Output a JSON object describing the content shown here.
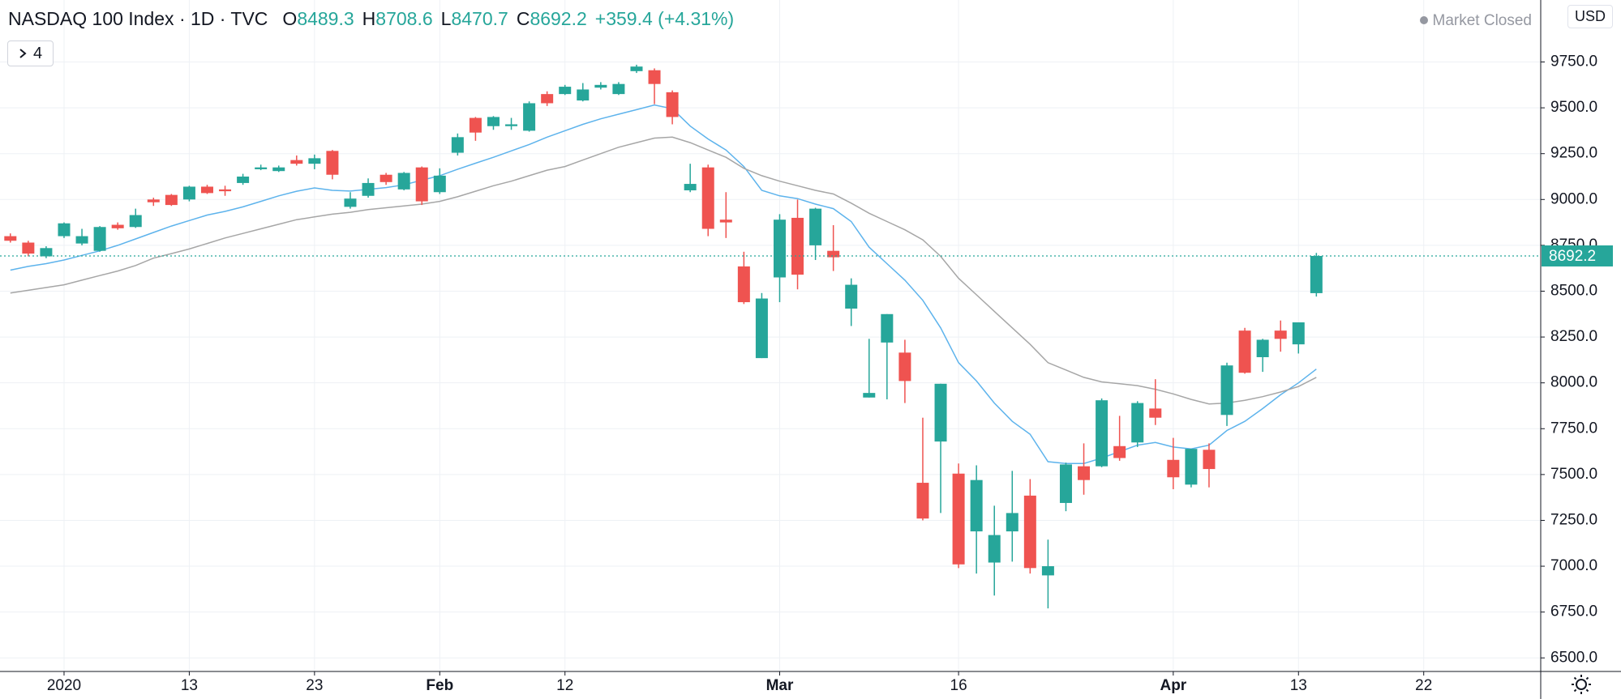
{
  "chart_data": {
    "type": "candlestick",
    "title": "NASDAQ 100 Index · 1D · TVC",
    "ohlc_labels": [
      "O",
      "H",
      "L",
      "C"
    ],
    "change_label": "+359.4 (+4.31%)",
    "market_status": "Market Closed",
    "currency": "USD",
    "indicators_count": 4,
    "up_color": "#26a69a",
    "down_color": "#ef5350",
    "grid": true,
    "x": [
      -3,
      -2,
      -1,
      0,
      1,
      2,
      3,
      4,
      5,
      6,
      7,
      8,
      9,
      10,
      11,
      12,
      13,
      14,
      15,
      16,
      17,
      18,
      19,
      20,
      21,
      22,
      23,
      24,
      25,
      26,
      27,
      28,
      29,
      30,
      31,
      32,
      33,
      34,
      35,
      36,
      37,
      38,
      39,
      40,
      41,
      42,
      43,
      44,
      45,
      46,
      47,
      48,
      49,
      50,
      51,
      52,
      53,
      54,
      55,
      56,
      57,
      58,
      59,
      60,
      61,
      62,
      63,
      64,
      65,
      66,
      67,
      68,
      69,
      70
    ],
    "open": [
      8800,
      8765,
      8690,
      8800,
      8760,
      8720,
      8862,
      8850,
      9000,
      9025,
      9000,
      9070,
      9055,
      9090,
      9165,
      9155,
      9215,
      9195,
      9265,
      8960,
      9020,
      9135,
      9055,
      9175,
      9040,
      9255,
      9445,
      9400,
      9400,
      9375,
      9575,
      9575,
      9540,
      9610,
      9575,
      9700,
      9705,
      9585,
      9050,
      9175,
      8890,
      8635,
      8135,
      8575,
      8900,
      8750,
      8720,
      8405,
      7920,
      8220,
      8165,
      7455,
      7680,
      7505,
      7190,
      7020,
      7190,
      7385,
      6950,
      7345,
      7545,
      7545,
      7655,
      7675,
      7860,
      7580,
      7445,
      7635,
      7825,
      8285,
      8140,
      8285,
      8210,
      8489.3
    ],
    "high": [
      8815,
      8775,
      8745,
      8875,
      8840,
      8855,
      8875,
      8950,
      9010,
      9030,
      9075,
      9080,
      9075,
      9140,
      9190,
      9185,
      9240,
      9245,
      9270,
      9040,
      9115,
      9145,
      9150,
      9180,
      9170,
      9360,
      9450,
      9455,
      9445,
      9535,
      9590,
      9625,
      9635,
      9640,
      9640,
      9735,
      9715,
      9595,
      9195,
      9190,
      9040,
      8715,
      8490,
      8920,
      9000,
      8955,
      8860,
      8570,
      8240,
      8375,
      8235,
      7810,
      7995,
      7560,
      7550,
      7330,
      7520,
      7475,
      7145,
      7565,
      7670,
      7915,
      7820,
      7900,
      8020,
      7700,
      7640,
      7670,
      8110,
      8300,
      8240,
      8340,
      8330,
      8708.6
    ],
    "low": [
      8765,
      8690,
      8680,
      8790,
      8750,
      8715,
      8835,
      8845,
      8965,
      8965,
      8990,
      9030,
      9020,
      9080,
      9160,
      9150,
      9185,
      9165,
      9110,
      8950,
      9010,
      9080,
      9050,
      8970,
      9030,
      9240,
      9320,
      9380,
      9380,
      9370,
      9510,
      9570,
      9535,
      9600,
      9570,
      9690,
      9520,
      9410,
      9040,
      8800,
      8790,
      8430,
      8135,
      8440,
      8510,
      8670,
      8610,
      8310,
      7920,
      7910,
      7890,
      7250,
      7290,
      6990,
      6960,
      6840,
      7025,
      6960,
      6770,
      7300,
      7390,
      7540,
      7575,
      7650,
      7770,
      7420,
      7430,
      7430,
      7765,
      8050,
      8060,
      8170,
      8160,
      8470.7
    ],
    "close": [
      8775,
      8705,
      8735,
      8870,
      8800,
      8850,
      8843,
      8915,
      8985,
      8970,
      9070,
      9035,
      9045,
      9125,
      9175,
      9175,
      9195,
      9225,
      9135,
      9005,
      9090,
      9095,
      9145,
      8990,
      9130,
      9340,
      9365,
      9450,
      9410,
      9525,
      9525,
      9615,
      9600,
      9625,
      9630,
      9725,
      9630,
      9450,
      9085,
      8840,
      8875,
      8440,
      8460,
      8890,
      8590,
      8950,
      8685,
      8535,
      7945,
      8375,
      8010,
      7260,
      7995,
      7010,
      7470,
      7170,
      7290,
      6990,
      7000,
      7555,
      7470,
      7905,
      7590,
      7890,
      7810,
      7485,
      7640,
      7530,
      8095,
      8055,
      8235,
      8240,
      8330,
      8692.2
    ],
    "series": [
      {
        "color": "#5db3ec",
        "values": [
          8615,
          8635,
          8650,
          8670,
          8695,
          8720,
          8750,
          8785,
          8820,
          8855,
          8885,
          8915,
          8935,
          8960,
          8990,
          9020,
          9045,
          9063,
          9050,
          9046,
          9055,
          9065,
          9080,
          9105,
          9130,
          9165,
          9198,
          9230,
          9265,
          9300,
          9340,
          9375,
          9410,
          9440,
          9465,
          9490,
          9515,
          9495,
          9400,
          9330,
          9270,
          9180,
          9050,
          9020,
          9005,
          8975,
          8950,
          8880,
          8740,
          8650,
          8560,
          8450,
          8300,
          8110,
          8010,
          7890,
          7790,
          7720,
          7570,
          7560,
          7560,
          7590,
          7625,
          7660,
          7675,
          7650,
          7640,
          7660,
          7740,
          7790,
          7860,
          7935,
          8000,
          8075
        ]
      },
      {
        "color": "#a6a6a6",
        "values": [
          8490,
          8505,
          8520,
          8535,
          8560,
          8585,
          8610,
          8640,
          8680,
          8705,
          8730,
          8760,
          8790,
          8815,
          8840,
          8865,
          8890,
          8905,
          8920,
          8930,
          8945,
          8955,
          8965,
          8975,
          8990,
          9015,
          9045,
          9075,
          9100,
          9130,
          9160,
          9180,
          9215,
          9250,
          9285,
          9310,
          9335,
          9340,
          9310,
          9270,
          9230,
          9170,
          9130,
          9100,
          9075,
          9050,
          9030,
          8980,
          8925,
          8880,
          8835,
          8780,
          8690,
          8570,
          8480,
          8390,
          8300,
          8210,
          8110,
          8070,
          8030,
          8005,
          7995,
          7985,
          7965,
          7940,
          7910,
          7885,
          7890,
          7905,
          7925,
          7950,
          7980,
          8030
        ]
      }
    ],
    "xlim": [
      -3.58,
      82.54
    ],
    "xticks": [
      {
        "value": 0,
        "label": "2020"
      },
      {
        "value": 7,
        "label": "13"
      },
      {
        "value": 14,
        "label": "23"
      },
      {
        "value": 21,
        "label": "Feb"
      },
      {
        "value": 28,
        "label": "12"
      },
      {
        "value": 40,
        "label": "Mar"
      },
      {
        "value": 50,
        "label": "16"
      },
      {
        "value": 62,
        "label": "Apr"
      },
      {
        "value": 69,
        "label": "13"
      },
      {
        "value": 76,
        "label": "22"
      }
    ],
    "ylim": [
      6426,
      10088
    ],
    "yticks": [
      {
        "value": 6500,
        "label": "6500.0"
      },
      {
        "value": 6750,
        "label": "6750.0"
      },
      {
        "value": 7000,
        "label": "7000.0"
      },
      {
        "value": 7250,
        "label": "7250.0"
      },
      {
        "value": 7500,
        "label": "7500.0"
      },
      {
        "value": 7750,
        "label": "7750.0"
      },
      {
        "value": 8000,
        "label": "8000.0"
      },
      {
        "value": 8250,
        "label": "8250.0"
      },
      {
        "value": 8500,
        "label": "8500.0"
      },
      {
        "value": 8750,
        "label": "8750.0"
      },
      {
        "value": 9000,
        "label": "9000.0"
      },
      {
        "value": 9250,
        "label": "9250.0"
      },
      {
        "value": 9500,
        "label": "9500.0"
      },
      {
        "value": 9750,
        "label": "9750.0"
      }
    ]
  }
}
